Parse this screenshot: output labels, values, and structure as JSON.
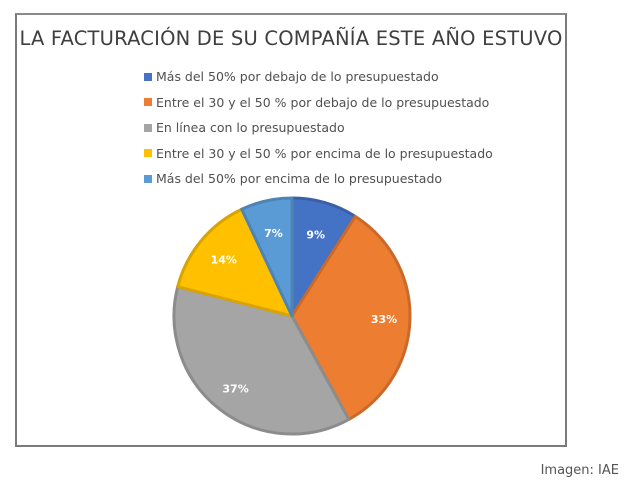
{
  "chart_data": {
    "type": "pie",
    "title": "LA FACTURACIÓN DE SU COMPAÑÍA ESTE AÑO ESTUVO",
    "legend_position": "top",
    "start": "12 o'clock, clockwise",
    "slices": [
      {
        "label": "Más del 50% por debajo de lo presupuestado",
        "value": 9,
        "display": "9%",
        "color": "#4472c4"
      },
      {
        "label": "Entre el 30 y el 50 % por debajo de lo presupuestado",
        "value": 33,
        "display": "33%",
        "color": "#ed7d31"
      },
      {
        "label": "En línea con lo presupuestado",
        "value": 37,
        "display": "37%",
        "color": "#a5a5a5"
      },
      {
        "label": "Entre el 30 y el 50 % por encima de lo presupuestado",
        "value": 14,
        "display": "14%",
        "color": "#ffc000"
      },
      {
        "label": "Más del 50% por encima de lo presupuestado",
        "value": 7,
        "display": "7%",
        "color": "#5b9bd5"
      }
    ]
  },
  "caption": "Imagen: IAE"
}
